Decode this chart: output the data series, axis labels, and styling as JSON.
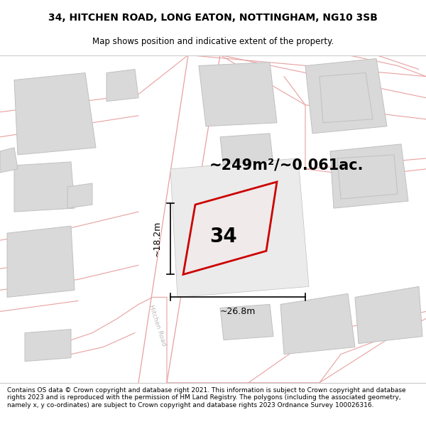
{
  "title_line1": "34, HITCHEN ROAD, LONG EATON, NOTTINGHAM, NG10 3SB",
  "title_line2": "Map shows position and indicative extent of the property.",
  "footer_text": "Contains OS data © Crown copyright and database right 2021. This information is subject to Crown copyright and database rights 2023 and is reproduced with the permission of HM Land Registry. The polygons (including the associated geometry, namely x, y co-ordinates) are subject to Crown copyright and database rights 2023 Ordnance Survey 100026316.",
  "map_bg": "#f7f5f5",
  "building_fill": "#d9d9d9",
  "building_edge": "#c0c0c0",
  "road_color": "#e8a0a0",
  "subject_fill": "#f0eaea",
  "subject_edge": "#cc0000",
  "area_text": "~249m²/~0.061ac.",
  "number_text": "34",
  "dim_width": "~26.8m",
  "dim_height": "~18.2m",
  "road_label": "Hitchen Road",
  "title_fontsize": 10,
  "subtitle_fontsize": 8.5,
  "footer_fontsize": 6.5,
  "area_fontsize": 15,
  "number_fontsize": 20
}
